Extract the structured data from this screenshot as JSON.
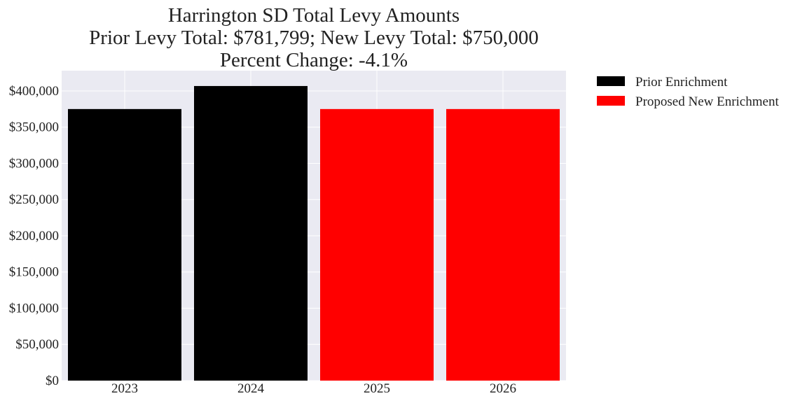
{
  "chart_data": {
    "type": "bar",
    "title_lines": [
      "Harrington SD Total Levy Amounts",
      "Prior Levy Total:  $781,799; New Levy Total: $750,000",
      "Percent Change: -4.1%"
    ],
    "xlabel": "",
    "ylabel": "",
    "categories": [
      "2023",
      "2024",
      "2025",
      "2026"
    ],
    "values": [
      375000,
      406799,
      375000,
      375000
    ],
    "bar_series": [
      "Prior Enrichment",
      "Prior Enrichment",
      "Proposed New Enrichment",
      "Proposed New Enrichment"
    ],
    "series": [
      {
        "name": "Prior Enrichment",
        "color": "#000000"
      },
      {
        "name": "Proposed New Enrichment",
        "color": "#ff0000"
      }
    ],
    "ylim": [
      0,
      428000
    ],
    "yticks": [
      0,
      50000,
      100000,
      150000,
      200000,
      250000,
      300000,
      350000,
      400000
    ],
    "ytick_labels": [
      "$0",
      "$50,000",
      "$100,000",
      "$150,000",
      "$200,000",
      "$250,000",
      "$300,000",
      "$350,000",
      "$400,000"
    ],
    "grid": true,
    "plot_background": "#eaeaf2",
    "legend_position": "outside-right-top"
  }
}
